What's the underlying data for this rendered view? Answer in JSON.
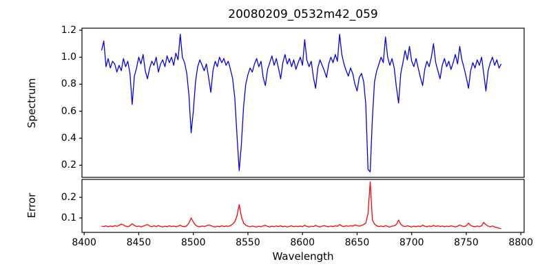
{
  "figure": {
    "title": "20080209_0532m42_059",
    "xlabel": "Wavelength",
    "background_color": "#ffffff",
    "axis_color": "#000000"
  },
  "chart_data": [
    {
      "type": "line",
      "name": "spectrum",
      "title": "20080209_0532m42_059",
      "ylabel": "Spectrum",
      "color": "#0000ee",
      "grid": false,
      "legend": "none",
      "x_start": 8416,
      "x_step": 2,
      "xlim": [
        8398,
        8803
      ],
      "ylim": [
        0.11,
        1.215
      ],
      "yticks": [
        0.2,
        0.4,
        0.6,
        0.8,
        1.0,
        1.2
      ],
      "values": [
        1.05,
        1.12,
        0.93,
        0.99,
        0.92,
        0.97,
        0.95,
        0.89,
        0.94,
        0.9,
        0.99,
        0.93,
        0.97,
        0.88,
        0.65,
        0.86,
        0.92,
        1.0,
        0.95,
        1.02,
        0.9,
        0.84,
        0.92,
        0.97,
        0.94,
        1.0,
        0.89,
        0.95,
        0.98,
        0.93,
        1.01,
        0.96,
        1.0,
        0.94,
        1.03,
        0.98,
        1.17,
        1.0,
        0.96,
        0.88,
        0.72,
        0.44,
        0.6,
        0.82,
        0.93,
        0.98,
        0.94,
        0.9,
        0.95,
        0.85,
        0.74,
        0.9,
        0.97,
        0.93,
        1.0,
        0.96,
        0.99,
        0.94,
        0.97,
        0.91,
        0.84,
        0.7,
        0.42,
        0.16,
        0.35,
        0.63,
        0.8,
        0.87,
        0.92,
        0.89,
        0.95,
        0.99,
        0.93,
        0.97,
        0.85,
        0.79,
        0.91,
        0.96,
        1.01,
        0.94,
        0.99,
        0.92,
        0.84,
        0.96,
        1.02,
        0.95,
        0.99,
        0.93,
        0.98,
        0.91,
        0.96,
        1.0,
        0.94,
        1.13,
        0.98,
        0.93,
        0.97,
        0.85,
        0.77,
        0.92,
        0.98,
        0.94,
        0.9,
        0.85,
        0.95,
        1.0,
        0.96,
        1.02,
        0.97,
        1.17,
        1.02,
        0.95,
        0.9,
        0.86,
        0.92,
        0.88,
        0.8,
        0.75,
        0.85,
        0.88,
        0.82,
        0.65,
        0.17,
        0.15,
        0.55,
        0.82,
        0.9,
        0.95,
        1.0,
        0.96,
        1.15,
        1.0,
        0.94,
        0.99,
        0.92,
        0.78,
        0.66,
        0.88,
        0.96,
        1.05,
        0.98,
        1.08,
        0.97,
        0.93,
        0.99,
        0.92,
        0.85,
        0.79,
        0.91,
        0.97,
        0.93,
        1.0,
        1.1,
        0.96,
        0.9,
        0.84,
        0.94,
        0.99,
        0.93,
        0.97,
        0.91,
        0.96,
        1.02,
        0.95,
        1.08,
        0.98,
        0.92,
        0.85,
        0.77,
        0.9,
        0.96,
        0.92,
        0.98,
        0.94,
        1.0,
        0.88,
        0.75,
        0.9,
        0.96,
        1.0,
        0.94,
        0.98,
        0.92,
        0.95
      ]
    },
    {
      "type": "line",
      "name": "error",
      "ylabel": "Error",
      "xlabel": "Wavelength",
      "color": "#ff0000",
      "grid": false,
      "legend": "none",
      "x_start": 8416,
      "x_step": 2,
      "xlim": [
        8398,
        8803
      ],
      "ylim": [
        0.03,
        0.287
      ],
      "yticks": [
        0.1,
        0.2
      ],
      "xticks": [
        8400,
        8450,
        8500,
        8550,
        8600,
        8650,
        8700,
        8750,
        8800
      ],
      "values": [
        0.06,
        0.058,
        0.062,
        0.057,
        0.061,
        0.058,
        0.063,
        0.059,
        0.064,
        0.07,
        0.066,
        0.06,
        0.057,
        0.062,
        0.072,
        0.064,
        0.058,
        0.061,
        0.056,
        0.06,
        0.064,
        0.068,
        0.061,
        0.057,
        0.062,
        0.058,
        0.063,
        0.059,
        0.056,
        0.06,
        0.057,
        0.062,
        0.058,
        0.061,
        0.057,
        0.06,
        0.065,
        0.059,
        0.057,
        0.062,
        0.075,
        0.1,
        0.08,
        0.065,
        0.059,
        0.057,
        0.061,
        0.058,
        0.062,
        0.066,
        0.063,
        0.058,
        0.056,
        0.06,
        0.057,
        0.062,
        0.058,
        0.061,
        0.059,
        0.063,
        0.07,
        0.082,
        0.11,
        0.165,
        0.108,
        0.075,
        0.065,
        0.06,
        0.057,
        0.061,
        0.058,
        0.056,
        0.06,
        0.057,
        0.062,
        0.064,
        0.059,
        0.056,
        0.06,
        0.057,
        0.061,
        0.058,
        0.062,
        0.057,
        0.06,
        0.056,
        0.059,
        0.062,
        0.057,
        0.06,
        0.058,
        0.061,
        0.057,
        0.065,
        0.059,
        0.056,
        0.06,
        0.058,
        0.064,
        0.059,
        0.056,
        0.06,
        0.063,
        0.059,
        0.057,
        0.061,
        0.058,
        0.062,
        0.059,
        0.068,
        0.061,
        0.058,
        0.062,
        0.059,
        0.063,
        0.06,
        0.066,
        0.063,
        0.06,
        0.064,
        0.068,
        0.075,
        0.12,
        0.275,
        0.09,
        0.07,
        0.062,
        0.058,
        0.061,
        0.057,
        0.063,
        0.059,
        0.056,
        0.06,
        0.062,
        0.068,
        0.09,
        0.07,
        0.061,
        0.058,
        0.062,
        0.059,
        0.056,
        0.06,
        0.057,
        0.061,
        0.058,
        0.065,
        0.06,
        0.057,
        0.061,
        0.058,
        0.064,
        0.059,
        0.062,
        0.058,
        0.061,
        0.057,
        0.06,
        0.058,
        0.062,
        0.059,
        0.056,
        0.06,
        0.066,
        0.061,
        0.058,
        0.062,
        0.075,
        0.064,
        0.059,
        0.057,
        0.061,
        0.058,
        0.062,
        0.078,
        0.068,
        0.06,
        0.057,
        0.061,
        0.056,
        0.054,
        0.05,
        0.048
      ]
    }
  ]
}
